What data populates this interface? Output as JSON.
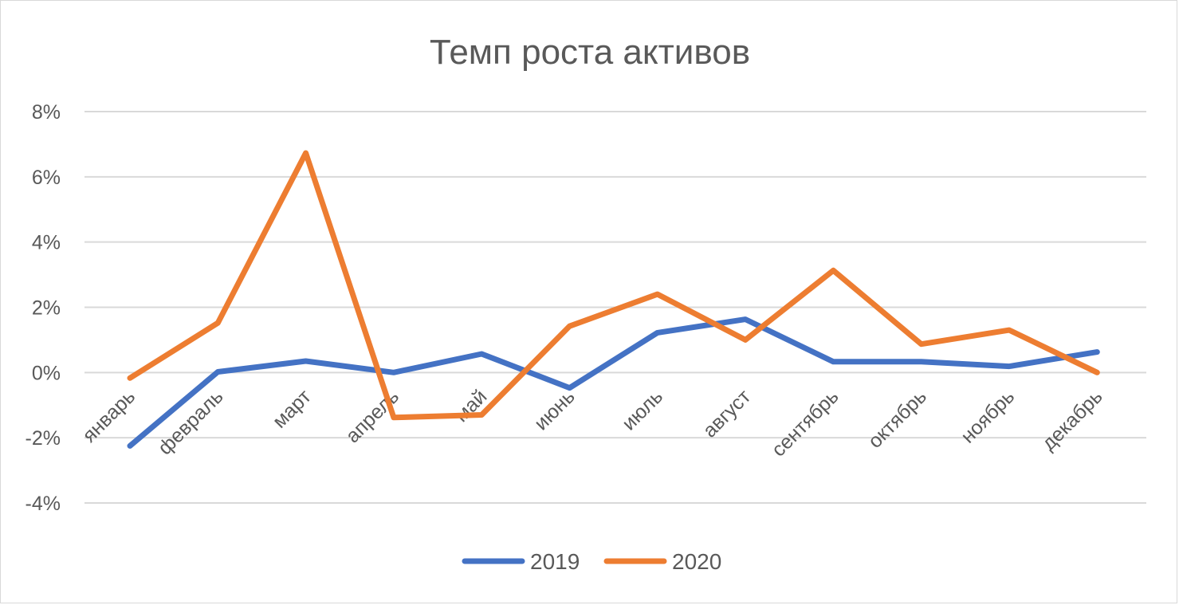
{
  "chart_data": {
    "type": "line",
    "title": "Темп роста активов",
    "xlabel": "",
    "ylabel": "",
    "categories": [
      "январь",
      "февраль",
      "март",
      "апрель",
      "май",
      "июнь",
      "июль",
      "август",
      "сентябрь",
      "октябрь",
      "ноябрь",
      "декабрь"
    ],
    "y_ticks": [
      "-4%",
      "-2%",
      "0%",
      "2%",
      "4%",
      "6%",
      "8%"
    ],
    "ylim": [
      -4,
      8
    ],
    "y_unit": "%",
    "grid": true,
    "legend_position": "bottom",
    "series": [
      {
        "name": "2019",
        "color": "#4472c4",
        "values": [
          -2.25,
          0.02,
          0.35,
          0.0,
          0.57,
          -0.47,
          1.22,
          1.63,
          0.33,
          0.33,
          0.19,
          0.63
        ]
      },
      {
        "name": "2020",
        "color": "#ed7d31",
        "values": [
          -0.17,
          1.52,
          6.73,
          -1.38,
          -1.3,
          1.42,
          2.4,
          1.0,
          3.13,
          0.87,
          1.3,
          0.0
        ]
      }
    ]
  }
}
